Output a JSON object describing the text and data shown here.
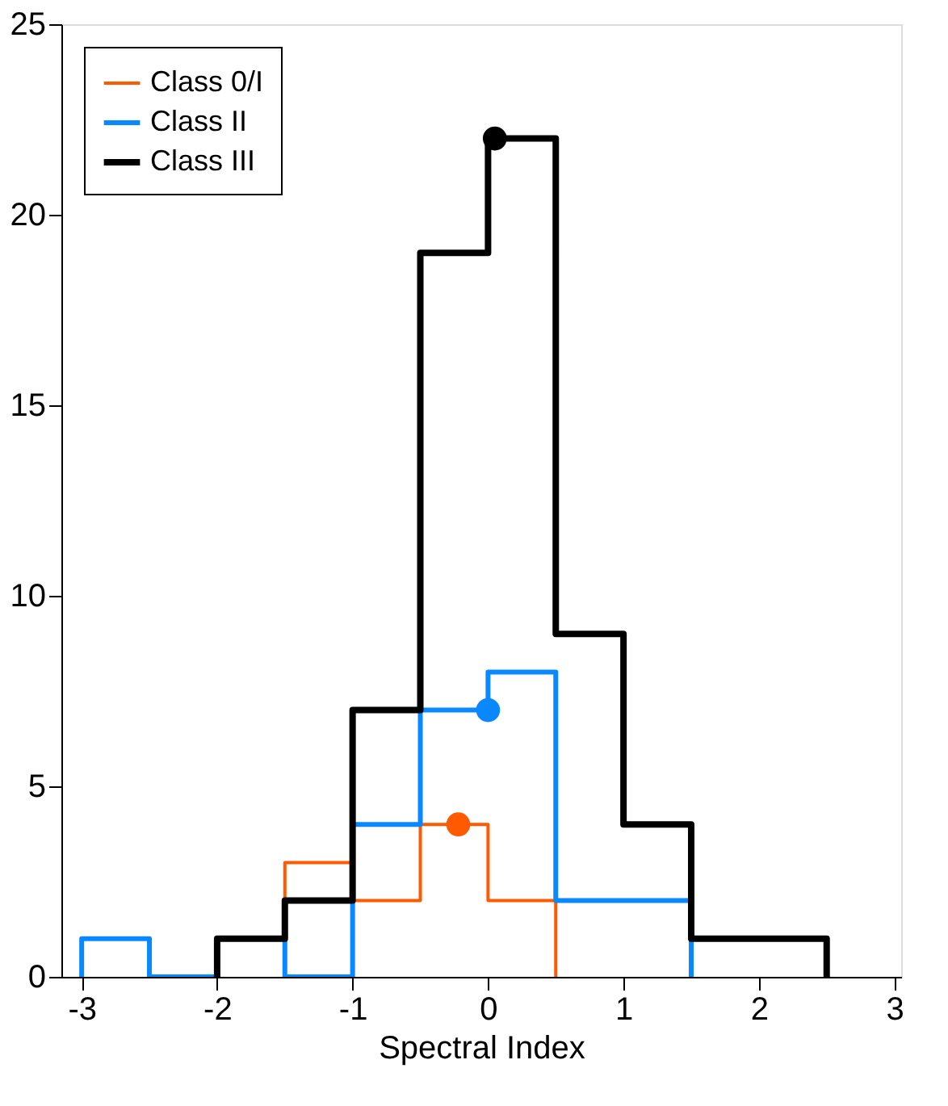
{
  "chart_data": {
    "type": "histogram",
    "xlabel": "Spectral Index",
    "xlim": [
      -3.15,
      3.05
    ],
    "xticks": [
      -3,
      -2,
      -1,
      0,
      1,
      2,
      3
    ],
    "ylim": [
      0,
      25
    ],
    "yticks": [
      0,
      5,
      10,
      15,
      20,
      25
    ],
    "grid": false,
    "legend": "top left",
    "series": [
      {
        "name": "Class 0/I",
        "color": "#ff5a00",
        "bins": [
          -1.5,
          -1,
          -0.5,
          0,
          0.5
        ],
        "values": [
          3,
          2,
          4,
          2
        ]
      },
      {
        "name": "Class II",
        "color": "#0a88ff",
        "bins": [
          -3,
          -2.5,
          -2,
          -1.5,
          -1,
          -0.5,
          0,
          0.5,
          1,
          1.5
        ],
        "values": [
          1,
          0,
          1,
          0,
          4,
          7,
          8,
          2,
          2
        ]
      },
      {
        "name": "Class III",
        "color": "#000000",
        "bins": [
          -2,
          -1.5,
          -1,
          -0.5,
          0,
          0.5,
          1,
          1.5,
          2,
          2.5
        ],
        "values": [
          1,
          2,
          7,
          19,
          22,
          9,
          4,
          1,
          1
        ]
      },
      {
        "type": "scatter",
        "marker": "circle",
        "color": "#ff5a00",
        "x": [
          -0.22
        ],
        "values": [
          4
        ]
      },
      {
        "type": "scatter",
        "marker": "circle",
        "color": "#0a88ff",
        "x": [
          0
        ],
        "values": [
          7
        ]
      },
      {
        "type": "scatter",
        "marker": "circle",
        "color": "#000000",
        "x": [
          0.05
        ],
        "values": [
          22
        ]
      }
    ]
  }
}
